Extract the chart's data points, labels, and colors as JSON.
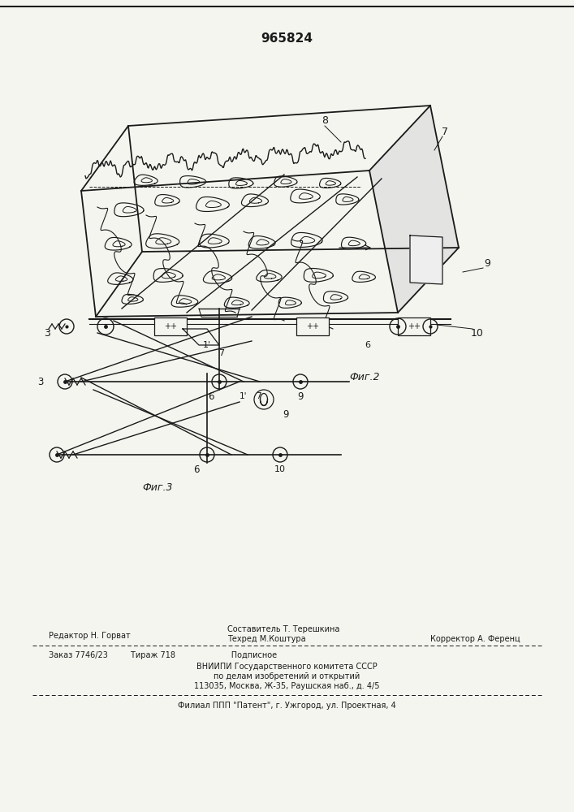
{
  "patent_number": "965824",
  "background_color": "#f5f5f0",
  "line_color": "#1a1a1a",
  "fig_width": 7.07,
  "fig_height": 10.0,
  "footer_fontsize": 7.0,
  "fig_label_fontsize": 9,
  "editor_line": "Редактор Н. Горват",
  "composer_line1": "Составитель Т. Терешкина",
  "composer_line2": "Техред М.Коштура",
  "corrector_line": "Корректор А. Ференц",
  "order_line": "Заказ 7746/23         Тираж 718                      Подписное",
  "vniipi_line1": "ВНИИПИ Государственного комитета СССР",
  "vniipi_line2": "по делам изобретений и открытий",
  "vniipi_line3": "113035, Москва, Ж-35, Раушская наб., д. 4/5",
  "filial_line": "Филиал ППП \"Патент\", г. Ужгород, ул. Проектная, 4"
}
